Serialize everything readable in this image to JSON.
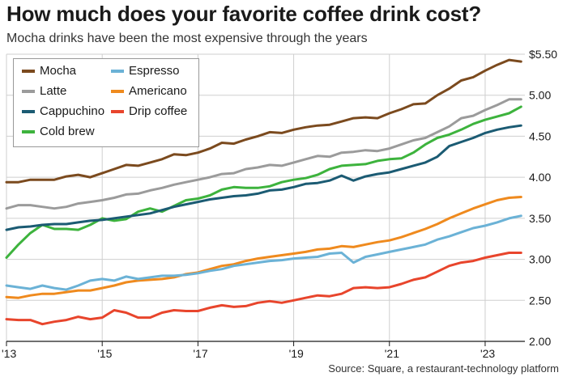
{
  "header": {
    "title": "How much does your favorite coffee drink cost?",
    "subtitle": "Mocha drinks have been the most expensive through the years"
  },
  "footer": {
    "source": "Source: Square, a restaurant-technology platform"
  },
  "colors": {
    "Mocha": "#7b4a1e",
    "Latte": "#9b9b9b",
    "Cappuchino": "#1b5b73",
    "Cold brew": "#3db33d",
    "Espresso": "#6bb2d6",
    "Americano": "#ef8a1e",
    "Drip coffee": "#e8452c",
    "grid": "#cfcfcf",
    "axis": "#1a1a1a"
  },
  "chart_data": {
    "type": "line",
    "title": "How much does your favorite coffee drink cost?",
    "subtitle": "Mocha drinks have been the most expensive through the years",
    "xlabel": "",
    "ylabel": "",
    "xlim": [
      2013.0,
      2023.83
    ],
    "ylim": [
      2.0,
      5.5
    ],
    "x_ticks": [
      2013,
      2015,
      2017,
      2019,
      2021,
      2023
    ],
    "x_tick_labels": [
      "'13",
      "'15",
      "'17",
      "'19",
      "'21",
      "'23"
    ],
    "y_ticks": [
      2.0,
      2.5,
      3.0,
      3.5,
      4.0,
      4.5,
      5.0,
      5.5
    ],
    "y_tick_labels": [
      "2.00",
      "2.50",
      "3.00",
      "3.50",
      "4.00",
      "4.50",
      "5.00",
      "$5.50"
    ],
    "y_axis_side": "right",
    "grid": true,
    "legend_position": "top-left",
    "legend_order": [
      "Mocha",
      "Espresso",
      "Latte",
      "Americano",
      "Cappuchino",
      "Drip coffee",
      "Cold brew"
    ],
    "x": [
      2013.0,
      2013.25,
      2013.5,
      2013.75,
      2014.0,
      2014.25,
      2014.5,
      2014.75,
      2015.0,
      2015.25,
      2015.5,
      2015.75,
      2016.0,
      2016.25,
      2016.5,
      2016.75,
      2017.0,
      2017.25,
      2017.5,
      2017.75,
      2018.0,
      2018.25,
      2018.5,
      2018.75,
      2019.0,
      2019.25,
      2019.5,
      2019.75,
      2020.0,
      2020.25,
      2020.5,
      2020.75,
      2021.0,
      2021.25,
      2021.5,
      2021.75,
      2022.0,
      2022.25,
      2022.5,
      2022.75,
      2023.0,
      2023.25,
      2023.5,
      2023.75
    ],
    "series": [
      {
        "name": "Mocha",
        "values": [
          3.94,
          3.94,
          3.97,
          3.97,
          3.97,
          4.01,
          4.03,
          4.0,
          4.05,
          4.1,
          4.15,
          4.14,
          4.18,
          4.22,
          4.28,
          4.27,
          4.3,
          4.35,
          4.42,
          4.41,
          4.46,
          4.5,
          4.55,
          4.54,
          4.58,
          4.61,
          4.63,
          4.64,
          4.68,
          4.72,
          4.73,
          4.72,
          4.78,
          4.83,
          4.89,
          4.9,
          5.0,
          5.08,
          5.18,
          5.22,
          5.3,
          5.37,
          5.43,
          5.41
        ]
      },
      {
        "name": "Latte",
        "values": [
          3.62,
          3.66,
          3.66,
          3.64,
          3.62,
          3.64,
          3.68,
          3.7,
          3.72,
          3.75,
          3.79,
          3.8,
          3.84,
          3.87,
          3.91,
          3.94,
          3.97,
          4.0,
          4.04,
          4.05,
          4.1,
          4.12,
          4.15,
          4.14,
          4.18,
          4.22,
          4.26,
          4.25,
          4.3,
          4.31,
          4.33,
          4.32,
          4.35,
          4.4,
          4.45,
          4.48,
          4.55,
          4.62,
          4.72,
          4.75,
          4.82,
          4.88,
          4.95,
          4.95
        ]
      },
      {
        "name": "Cappuchino",
        "values": [
          3.36,
          3.39,
          3.4,
          3.42,
          3.43,
          3.43,
          3.45,
          3.47,
          3.48,
          3.5,
          3.52,
          3.54,
          3.56,
          3.6,
          3.64,
          3.67,
          3.7,
          3.73,
          3.75,
          3.77,
          3.78,
          3.8,
          3.84,
          3.85,
          3.88,
          3.92,
          3.93,
          3.96,
          4.02,
          3.96,
          4.01,
          4.04,
          4.06,
          4.1,
          4.14,
          4.18,
          4.25,
          4.38,
          4.43,
          4.48,
          4.54,
          4.58,
          4.61,
          4.63
        ]
      },
      {
        "name": "Cold brew",
        "values": [
          3.02,
          3.18,
          3.32,
          3.42,
          3.37,
          3.37,
          3.36,
          3.42,
          3.5,
          3.47,
          3.49,
          3.58,
          3.62,
          3.58,
          3.65,
          3.72,
          3.74,
          3.78,
          3.85,
          3.88,
          3.87,
          3.87,
          3.89,
          3.94,
          3.97,
          3.99,
          4.03,
          4.1,
          4.14,
          4.15,
          4.16,
          4.2,
          4.22,
          4.23,
          4.3,
          4.4,
          4.48,
          4.52,
          4.58,
          4.65,
          4.7,
          4.74,
          4.78,
          4.86
        ]
      },
      {
        "name": "Espresso",
        "values": [
          2.68,
          2.66,
          2.64,
          2.68,
          2.65,
          2.63,
          2.68,
          2.74,
          2.76,
          2.74,
          2.79,
          2.76,
          2.78,
          2.8,
          2.8,
          2.81,
          2.83,
          2.86,
          2.88,
          2.92,
          2.94,
          2.96,
          2.98,
          2.99,
          3.01,
          3.02,
          3.03,
          3.07,
          3.08,
          2.96,
          3.03,
          3.06,
          3.09,
          3.12,
          3.15,
          3.18,
          3.24,
          3.28,
          3.33,
          3.38,
          3.41,
          3.45,
          3.5,
          3.53
        ]
      },
      {
        "name": "Americano",
        "values": [
          2.54,
          2.53,
          2.56,
          2.58,
          2.58,
          2.6,
          2.62,
          2.62,
          2.65,
          2.68,
          2.72,
          2.74,
          2.75,
          2.76,
          2.78,
          2.82,
          2.84,
          2.88,
          2.92,
          2.94,
          2.98,
          3.01,
          3.03,
          3.05,
          3.07,
          3.09,
          3.12,
          3.13,
          3.16,
          3.15,
          3.18,
          3.21,
          3.23,
          3.27,
          3.32,
          3.37,
          3.43,
          3.5,
          3.56,
          3.62,
          3.67,
          3.72,
          3.75,
          3.76
        ]
      },
      {
        "name": "Drip coffee",
        "values": [
          2.27,
          2.26,
          2.26,
          2.21,
          2.24,
          2.26,
          2.3,
          2.27,
          2.29,
          2.38,
          2.35,
          2.29,
          2.29,
          2.35,
          2.38,
          2.37,
          2.37,
          2.41,
          2.44,
          2.42,
          2.43,
          2.47,
          2.49,
          2.47,
          2.5,
          2.53,
          2.56,
          2.55,
          2.58,
          2.65,
          2.66,
          2.65,
          2.66,
          2.7,
          2.75,
          2.78,
          2.85,
          2.92,
          2.96,
          2.98,
          3.02,
          3.05,
          3.08,
          3.08
        ]
      }
    ]
  }
}
